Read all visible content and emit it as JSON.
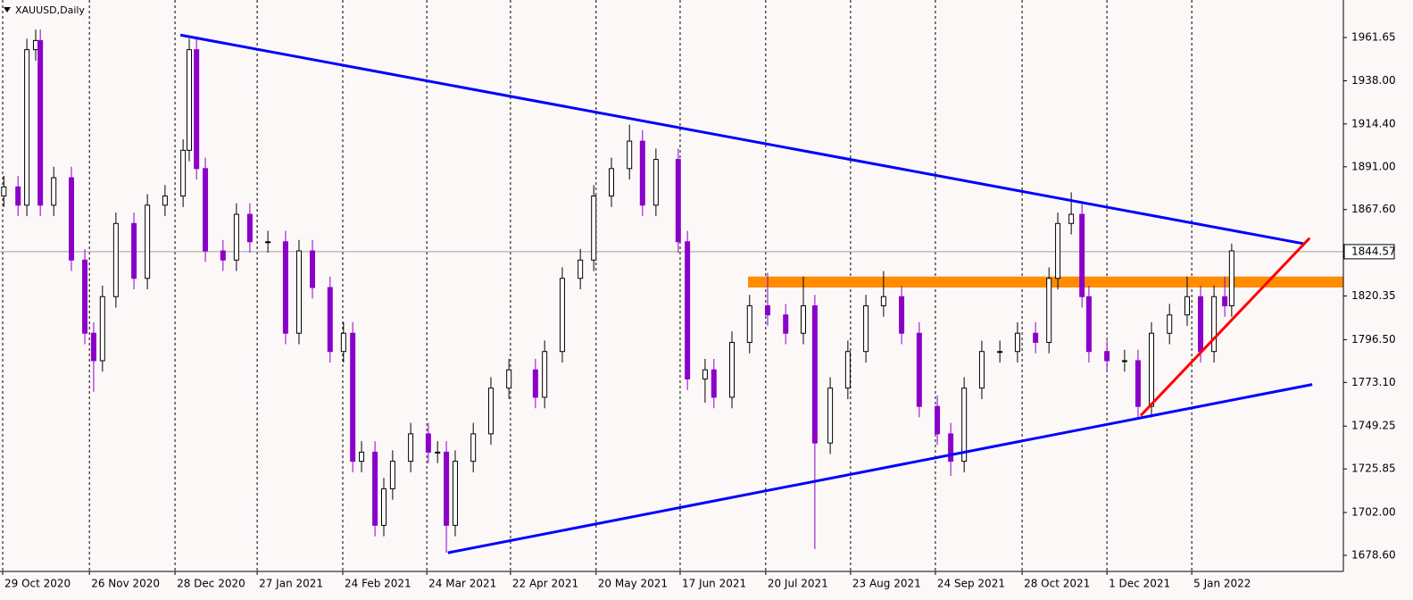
{
  "chart_data": {
    "type": "candlestick",
    "title": "XAUUSD,Daily",
    "up_color": "#000000",
    "down_color": "#8b00c9",
    "grid": "x",
    "xlim": [
      0,
      350
    ],
    "ylim": [
      1669.8,
      1982.15
    ],
    "yticks": [
      1961.65,
      {
        "value": 1938,
        "label": "1938.00"
      },
      {
        "value": 1914.4,
        "label": "1914.40"
      },
      {
        "value": 1891,
        "label": "1891.00"
      },
      {
        "value": 1867.6,
        "label": "1867.60"
      },
      1820.35,
      {
        "value": 1796.5,
        "label": "1796.50"
      },
      {
        "value": 1773.1,
        "label": "1773.10"
      },
      1749.25,
      1725.85,
      {
        "value": 1702,
        "label": "1702.00"
      },
      {
        "value": 1678.6,
        "label": "1678.60"
      }
    ],
    "xticks": [
      {
        "value": 0.7,
        "label": "29 Oct 2020"
      },
      {
        "value": 23.3,
        "label": "26 Nov 2020"
      },
      {
        "value": 45.6,
        "label": "28 Dec 2020"
      },
      {
        "value": 67,
        "label": "27 Jan 2021"
      },
      {
        "value": 89.3,
        "label": "24 Feb 2021"
      },
      {
        "value": 111.2,
        "label": "24 Mar 2021"
      },
      {
        "value": 133,
        "label": "22 Apr 2021"
      },
      {
        "value": 155.3,
        "label": "20 May 2021"
      },
      {
        "value": 177.2,
        "label": "17 Jun 2021"
      },
      {
        "value": 199.5,
        "label": "20 Jul 2021"
      },
      {
        "value": 221.6,
        "label": "23 Aug 2021"
      },
      {
        "value": 243.7,
        "label": "24 Sep 2021"
      },
      {
        "value": 266.3,
        "label": "28 Oct 2021"
      },
      {
        "value": 288.4,
        "label": "1 Dec 2021"
      },
      {
        "value": 310.5,
        "label": "5 Jan 2022"
      }
    ],
    "current_price": 1844.57,
    "current_price_color": "#a0a0a0",
    "x": [
      1,
      4.7,
      7,
      9.3,
      10.5,
      14,
      18.6,
      22.1,
      24.4,
      26.7,
      30.2,
      34.9,
      38.4,
      43,
      47.7,
      49.3,
      51.2,
      53.5,
      58.1,
      61.6,
      65.1,
      69.8,
      74.4,
      77.9,
      81.4,
      86,
      89.5,
      91.9,
      94.2,
      97.7,
      100,
      102.3,
      107,
      111.6,
      114,
      116.3,
      118.6,
      123.3,
      127.9,
      132.6,
      139.5,
      141.9,
      146.5,
      151.2,
      154.7,
      159.3,
      164,
      167.4,
      170.9,
      176.7,
      179.1,
      183.7,
      186,
      190.7,
      195.3,
      200,
      204.7,
      209.3,
      212.3,
      216.3,
      220.9,
      225.6,
      230.2,
      234.9,
      239.5,
      244.2,
      247.7,
      251.2,
      255.8,
      260.5,
      265.1,
      269.8,
      273.3,
      275.6,
      279.1,
      281.9,
      283.7,
      288.4,
      293,
      296.5,
      300,
      304.7,
      309.3,
      312.8,
      316.3,
      319.1,
      320.9
    ],
    "open": [
      1875,
      1880,
      1870,
      1955,
      1960,
      1870,
      1885,
      1840,
      1800,
      1785,
      1820,
      1860,
      1830,
      1870,
      1875,
      1900,
      1955,
      1890,
      1845,
      1840,
      1865,
      1850,
      1850,
      1800,
      1845,
      1825,
      1790,
      1800,
      1730,
      1735,
      1695,
      1715,
      1730,
      1745,
      1735,
      1735,
      1695,
      1730,
      1745,
      1770,
      1780,
      1765,
      1790,
      1830,
      1840,
      1875,
      1890,
      1905,
      1870,
      1895,
      1850,
      1775,
      1780,
      1765,
      1795,
      1815,
      1810,
      1800,
      1815,
      1740,
      1770,
      1790,
      1815,
      1820,
      1800,
      1760,
      1745,
      1730,
      1770,
      1790,
      1790,
      1800,
      1795,
      1830,
      1860,
      1865,
      1820,
      1790,
      1785,
      1785,
      1760,
      1800,
      1810,
      1820,
      1790,
      1820,
      1815
    ],
    "high": [
      1886,
      1886,
      1961,
      1966,
      1966,
      1891,
      1891,
      1846,
      1806,
      1826,
      1866,
      1866,
      1876,
      1881,
      1906,
      1961,
      1961,
      1896,
      1851,
      1871,
      1871,
      1856,
      1856,
      1851,
      1851,
      1831,
      1806,
      1806,
      1741,
      1741,
      1721,
      1736,
      1751,
      1751,
      1741,
      1741,
      1736,
      1751,
      1776,
      1786,
      1786,
      1796,
      1836,
      1846,
      1881,
      1896,
      1914,
      1911,
      1901,
      1901,
      1856,
      1786,
      1786,
      1801,
      1821,
      1833,
      1816,
      1831,
      1821,
      1776,
      1796,
      1821,
      1834,
      1826,
      1806,
      1766,
      1751,
      1776,
      1796,
      1796,
      1806,
      1806,
      1836,
      1866,
      1877,
      1871,
      1826,
      1796,
      1791,
      1791,
      1806,
      1816,
      1831,
      1826,
      1826,
      1831,
      1849
    ],
    "low": [
      1869,
      1864,
      1864,
      1949,
      1864,
      1864,
      1834,
      1794,
      1768,
      1779,
      1814,
      1824,
      1824,
      1864,
      1869,
      1894,
      1884,
      1839,
      1834,
      1834,
      1844,
      1844,
      1794,
      1794,
      1819,
      1784,
      1784,
      1724,
      1724,
      1689,
      1689,
      1709,
      1724,
      1729,
      1729,
      1680,
      1689,
      1724,
      1739,
      1764,
      1759,
      1759,
      1784,
      1824,
      1834,
      1869,
      1884,
      1864,
      1864,
      1844,
      1769,
      1762,
      1759,
      1759,
      1789,
      1804,
      1794,
      1794,
      1682,
      1734,
      1764,
      1784,
      1809,
      1794,
      1754,
      1739,
      1722,
      1724,
      1764,
      1784,
      1784,
      1789,
      1789,
      1824,
      1854,
      1814,
      1784,
      1779,
      1779,
      1754,
      1754,
      1794,
      1804,
      1784,
      1784,
      1809,
      1809
    ],
    "close": [
      1880,
      1870,
      1955,
      1960,
      1870,
      1885,
      1840,
      1800,
      1785,
      1820,
      1860,
      1830,
      1870,
      1875,
      1900,
      1955,
      1890,
      1845,
      1840,
      1865,
      1850,
      1850,
      1800,
      1845,
      1825,
      1790,
      1800,
      1730,
      1735,
      1695,
      1715,
      1730,
      1745,
      1735,
      1735,
      1695,
      1730,
      1745,
      1770,
      1780,
      1765,
      1790,
      1830,
      1840,
      1875,
      1890,
      1905,
      1870,
      1895,
      1850,
      1775,
      1780,
      1765,
      1795,
      1815,
      1810,
      1800,
      1815,
      1740,
      1770,
      1790,
      1815,
      1820,
      1800,
      1760,
      1745,
      1730,
      1770,
      1790,
      1790,
      1800,
      1795,
      1830,
      1860,
      1865,
      1820,
      1790,
      1785,
      1785,
      1760,
      1800,
      1810,
      1820,
      1790,
      1820,
      1815,
      1845
    ],
    "zone": {
      "color": "#ff8c00",
      "x": [
        194.9,
        350
      ],
      "y": [
        1825,
        1831
      ]
    },
    "lines": [
      {
        "color": "#0000ff",
        "x": [
          47,
          339.5
        ],
        "y": [
          1963,
          1849
        ]
      },
      {
        "color": "#0000ff",
        "x": [
          116.7,
          341.9
        ],
        "y": [
          1680,
          1772
        ]
      },
      {
        "color": "#ff0000",
        "x": [
          297.2,
          341.2
        ],
        "y": [
          1755,
          1852
        ]
      }
    ]
  }
}
